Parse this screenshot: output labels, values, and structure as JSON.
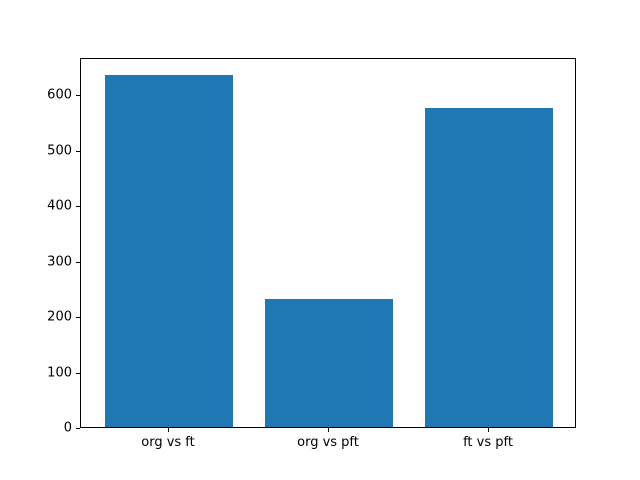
{
  "chart_data": {
    "type": "bar",
    "categories": [
      "org vs ft",
      "org vs pft",
      "ft vs pft"
    ],
    "values": [
      635,
      231,
      575
    ],
    "title": "",
    "xlabel": "",
    "ylabel": "",
    "ylim": [
      0,
      667
    ],
    "yticks": [
      0,
      100,
      200,
      300,
      400,
      500,
      600
    ],
    "bar_color": "#1f77b4",
    "axis_color": "#000000",
    "background_color": "#ffffff",
    "grid": false,
    "legend": null,
    "bar_width_fraction": 0.8
  }
}
